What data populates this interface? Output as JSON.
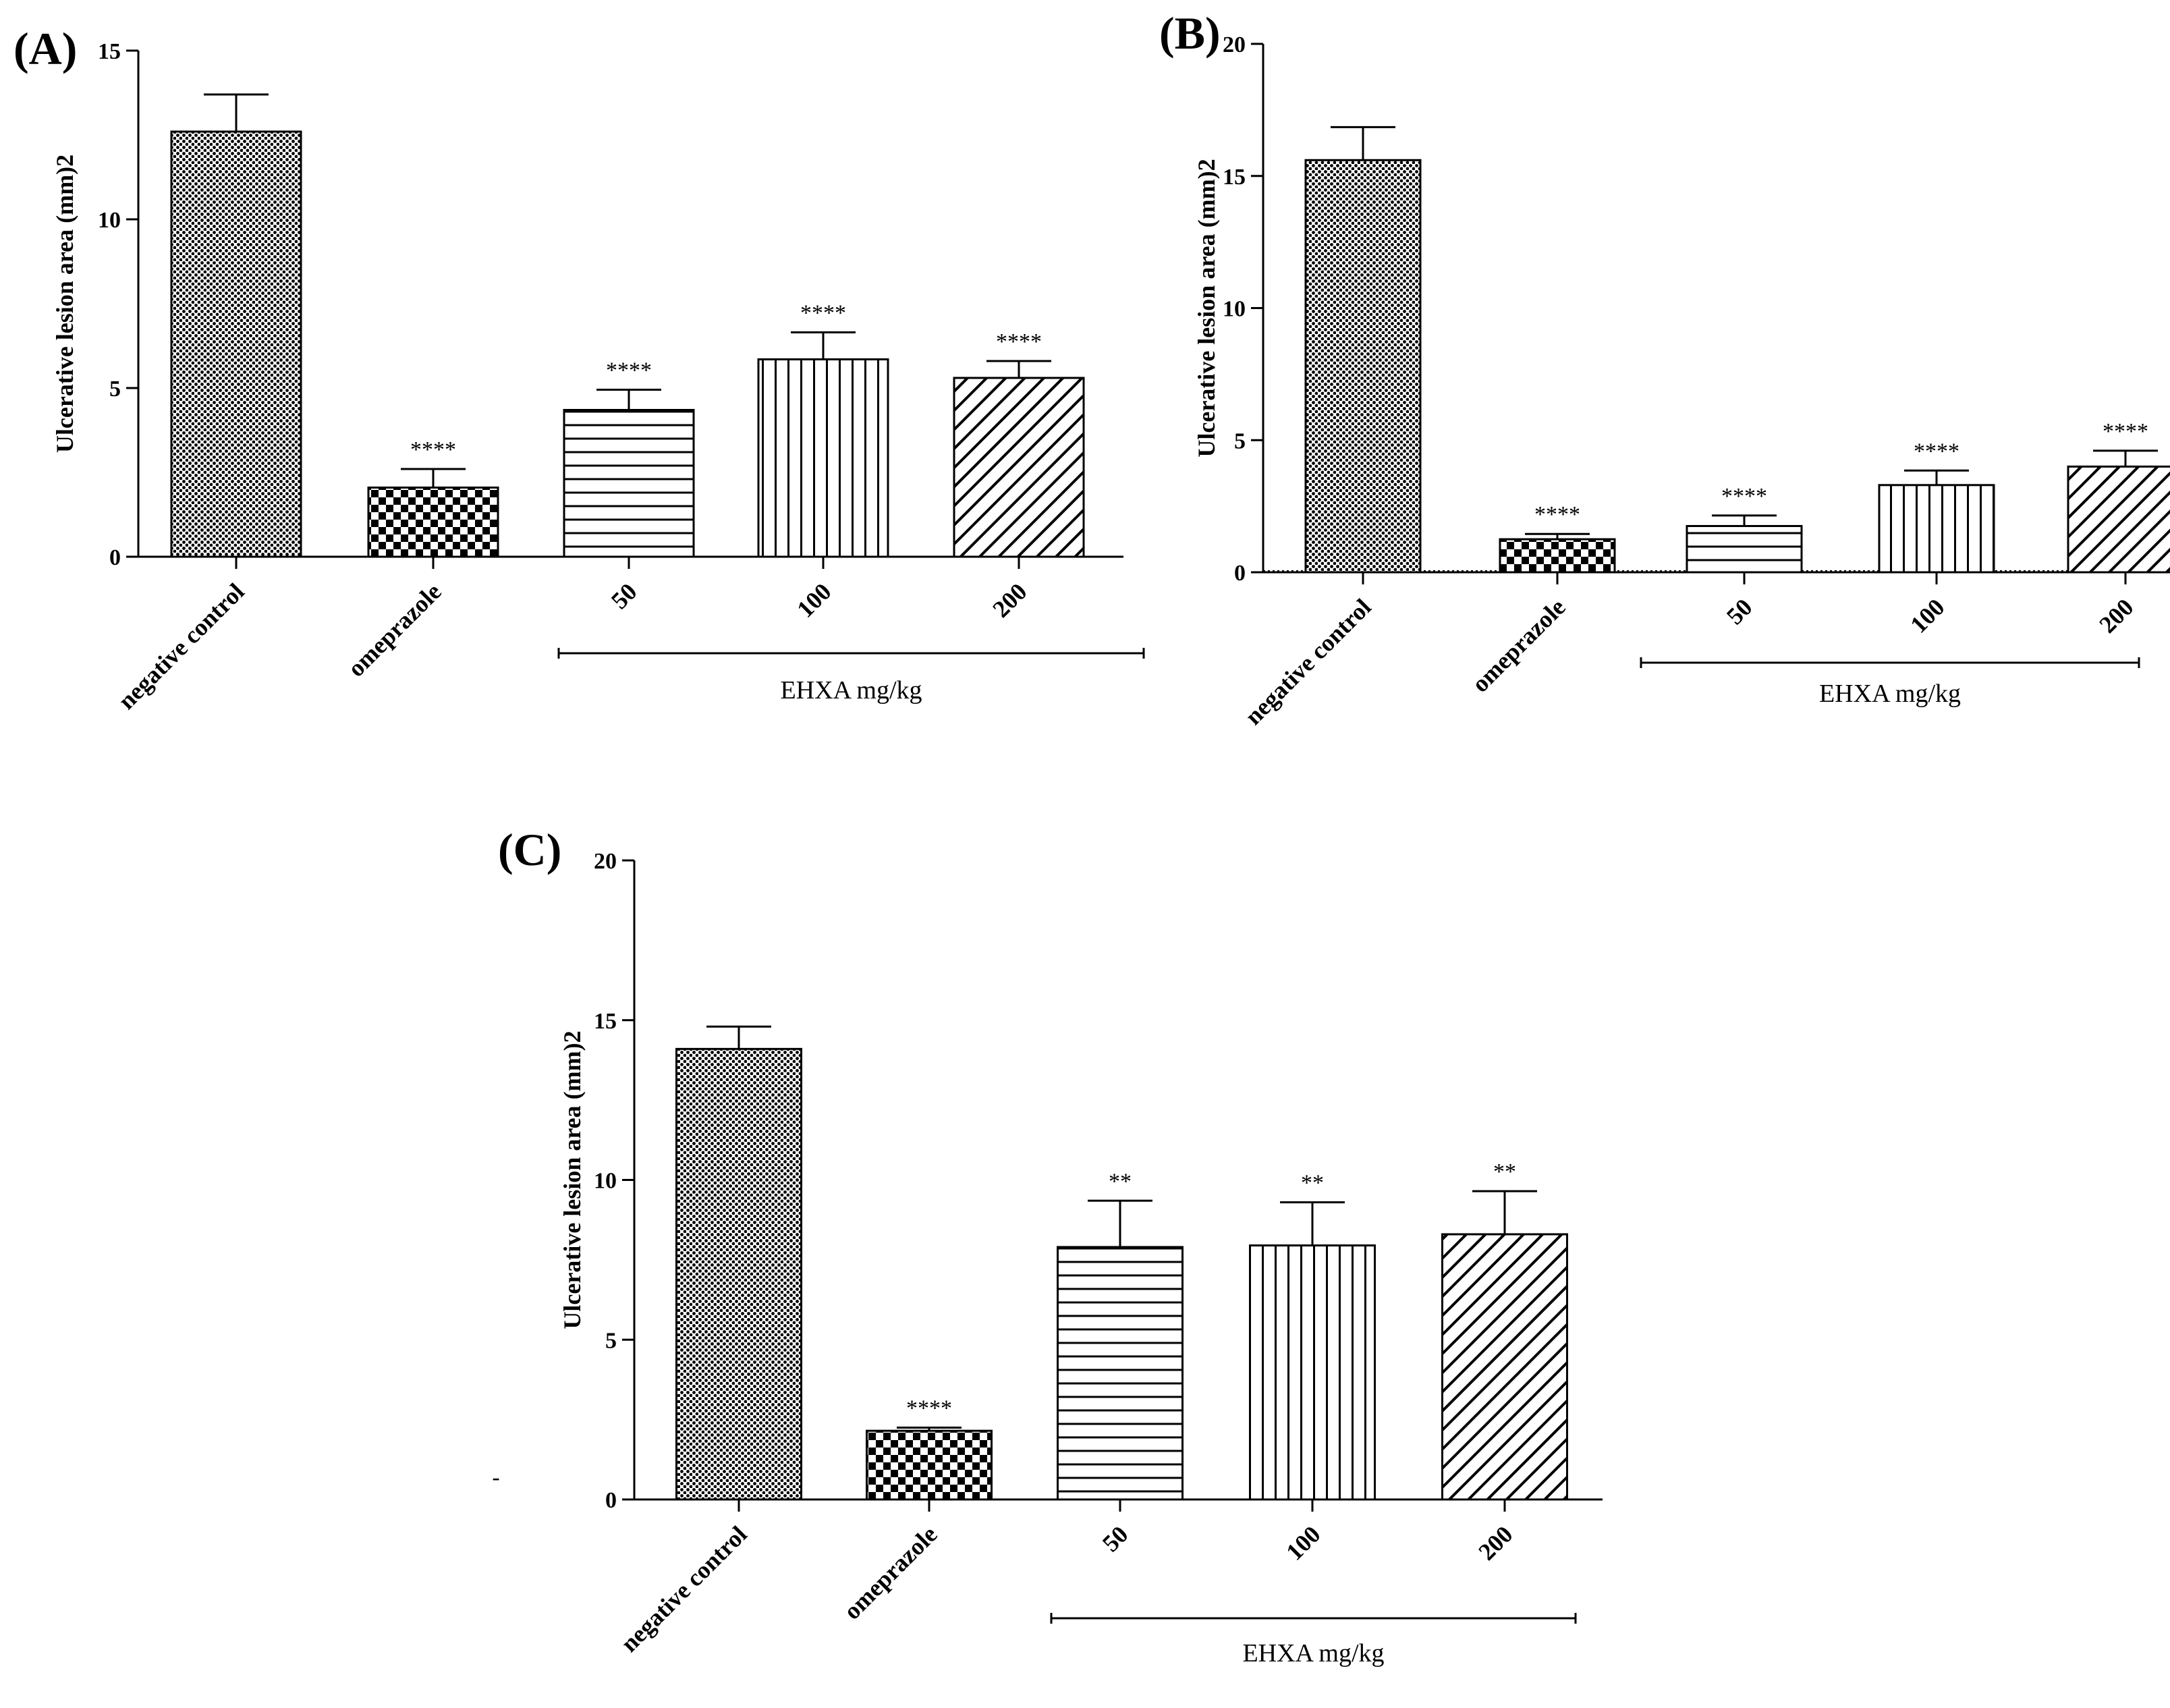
{
  "chart_data": [
    {
      "type": "bar",
      "panel": "(A)",
      "ylabel": "Ulcerative lesion area (mm)2",
      "ylim": [
        0,
        15
      ],
      "yticks": [
        0,
        5,
        10,
        15
      ],
      "categories": [
        "negative control",
        "omeprazole",
        "50",
        "100",
        "200"
      ],
      "values": [
        12.6,
        2.05,
        4.35,
        5.85,
        5.3
      ],
      "errors": [
        1.1,
        0.55,
        0.6,
        0.8,
        0.5
      ],
      "patterns": [
        "dots",
        "checker",
        "horizontal",
        "vertical",
        "diagonal"
      ],
      "significance": [
        "",
        "****",
        "****",
        "****",
        "****"
      ],
      "group_label": "EHXA mg/kg",
      "group_span": [
        2,
        4
      ]
    },
    {
      "type": "bar",
      "panel": "(B)",
      "ylabel": "Ulcerative lesion area (mm)2",
      "ylim": [
        0,
        20
      ],
      "yticks": [
        0,
        5,
        10,
        15,
        20
      ],
      "categories": [
        "negative control",
        "omeprazole",
        "50",
        "100",
        "200"
      ],
      "values": [
        15.6,
        1.25,
        1.75,
        3.3,
        4.0
      ],
      "errors": [
        1.25,
        0.2,
        0.4,
        0.55,
        0.6
      ],
      "patterns": [
        "dots",
        "checker",
        "horizontal",
        "vertical",
        "diagonal"
      ],
      "significance": [
        "",
        "****",
        "****",
        "****",
        "****"
      ],
      "group_label": "EHXA mg/kg",
      "group_span": [
        2,
        4
      ]
    },
    {
      "type": "bar",
      "panel": "(C)",
      "ylabel": "Ulcerative lesion area (mm)2",
      "ylim": [
        0,
        20
      ],
      "yticks": [
        0,
        5,
        10,
        15,
        20
      ],
      "categories": [
        "negative control",
        "omeprazole",
        "50",
        "100",
        "200"
      ],
      "values": [
        14.1,
        2.15,
        7.9,
        7.95,
        8.3
      ],
      "errors": [
        0.7,
        0.1,
        1.45,
        1.35,
        1.35
      ],
      "patterns": [
        "dots",
        "checker",
        "horizontal",
        "vertical",
        "diagonal"
      ],
      "significance": [
        "",
        "****",
        "**",
        "**",
        "**"
      ],
      "group_label": "EHXA mg/kg",
      "group_span": [
        2,
        4
      ]
    }
  ],
  "stray_mark": "-"
}
